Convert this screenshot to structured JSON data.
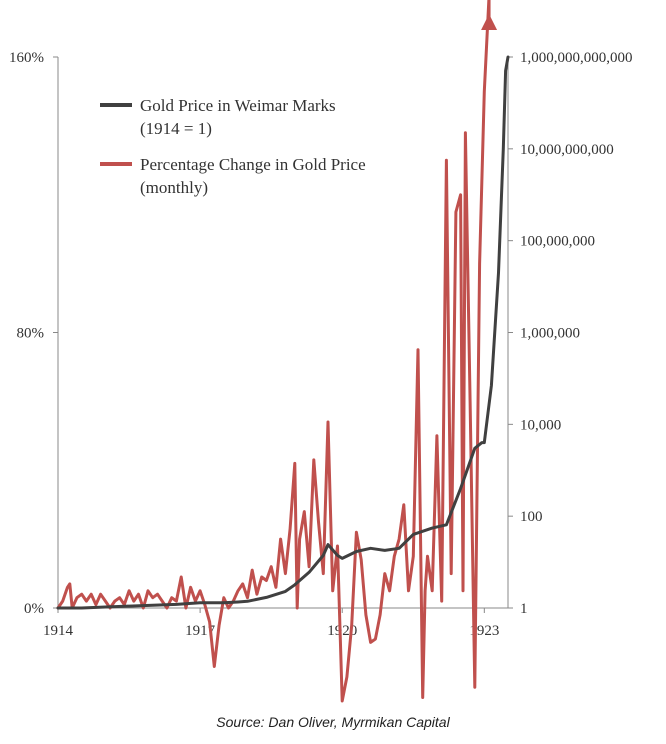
{
  "chart_data": {
    "type": "line",
    "title": "",
    "xlabel": "",
    "x_ticks": [
      "1914",
      "1917",
      "1920",
      "1923"
    ],
    "xlim": [
      1914,
      1923.5
    ],
    "left_axis": {
      "ticks": [
        "0%",
        "80%",
        "160%"
      ],
      "ylim": [
        0,
        160
      ],
      "unit": "%"
    },
    "right_axis": {
      "scale": "log",
      "ticks": [
        "1",
        "100",
        "10,000",
        "1,000,000",
        "100,000,000",
        "10,000,000,000",
        "1,000,000,000,000"
      ],
      "ylim": [
        1,
        1000000000000
      ]
    },
    "series": [
      {
        "name": "Gold Price in Weimar Marks",
        "name_line2": "(1914 = 1)",
        "axis": "right",
        "color": "#404040",
        "points": [
          [
            1914.0,
            1
          ],
          [
            1914.5,
            1
          ],
          [
            1915.0,
            1.05
          ],
          [
            1915.5,
            1.1
          ],
          [
            1916.0,
            1.15
          ],
          [
            1916.5,
            1.2
          ],
          [
            1917.0,
            1.3
          ],
          [
            1917.5,
            1.3
          ],
          [
            1917.8,
            1.35
          ],
          [
            1918.0,
            1.4
          ],
          [
            1918.4,
            1.7
          ],
          [
            1918.8,
            2.3
          ],
          [
            1919.0,
            3.2
          ],
          [
            1919.3,
            6
          ],
          [
            1919.6,
            14
          ],
          [
            1919.7,
            24
          ],
          [
            1919.9,
            14
          ],
          [
            1920.0,
            12
          ],
          [
            1920.3,
            17
          ],
          [
            1920.6,
            20
          ],
          [
            1920.9,
            18
          ],
          [
            1921.2,
            20
          ],
          [
            1921.5,
            40
          ],
          [
            1921.9,
            55
          ],
          [
            1922.2,
            65
          ],
          [
            1922.5,
            400
          ],
          [
            1922.8,
            3000
          ],
          [
            1922.95,
            4000
          ],
          [
            1923.0,
            4000
          ],
          [
            1923.15,
            70000
          ],
          [
            1923.3,
            20000000
          ],
          [
            1923.4,
            10000000000
          ],
          [
            1923.45,
            500000000000
          ],
          [
            1923.5,
            1000000000000
          ]
        ]
      },
      {
        "name": "Percentage Change in Gold Price",
        "name_line2": "(monthly)",
        "axis": "left",
        "color": "#c0504d",
        "points": [
          [
            1914.0,
            0
          ],
          [
            1914.1,
            2
          ],
          [
            1914.2,
            6
          ],
          [
            1914.25,
            7
          ],
          [
            1914.3,
            0
          ],
          [
            1914.4,
            3
          ],
          [
            1914.5,
            4
          ],
          [
            1914.6,
            2
          ],
          [
            1914.7,
            4
          ],
          [
            1914.8,
            1
          ],
          [
            1914.9,
            4
          ],
          [
            1915.0,
            2
          ],
          [
            1915.1,
            0
          ],
          [
            1915.2,
            2
          ],
          [
            1915.3,
            3
          ],
          [
            1915.4,
            1
          ],
          [
            1915.5,
            5
          ],
          [
            1915.6,
            2
          ],
          [
            1915.7,
            4
          ],
          [
            1915.8,
            0
          ],
          [
            1915.9,
            5
          ],
          [
            1916.0,
            3
          ],
          [
            1916.1,
            4
          ],
          [
            1916.2,
            2
          ],
          [
            1916.3,
            0
          ],
          [
            1916.4,
            3
          ],
          [
            1916.5,
            2
          ],
          [
            1916.6,
            9
          ],
          [
            1916.7,
            0
          ],
          [
            1916.8,
            6
          ],
          [
            1916.9,
            2
          ],
          [
            1917.0,
            5
          ],
          [
            1917.1,
            1
          ],
          [
            1917.2,
            -4
          ],
          [
            1917.3,
            -17
          ],
          [
            1917.4,
            -5
          ],
          [
            1917.5,
            3
          ],
          [
            1917.6,
            0
          ],
          [
            1917.7,
            2
          ],
          [
            1917.8,
            5
          ],
          [
            1917.9,
            7
          ],
          [
            1918.0,
            3
          ],
          [
            1918.1,
            11
          ],
          [
            1918.2,
            4
          ],
          [
            1918.3,
            9
          ],
          [
            1918.4,
            8
          ],
          [
            1918.5,
            12
          ],
          [
            1918.6,
            6
          ],
          [
            1918.7,
            20
          ],
          [
            1918.8,
            10
          ],
          [
            1918.9,
            23
          ],
          [
            1919.0,
            42
          ],
          [
            1919.05,
            0
          ],
          [
            1919.1,
            20
          ],
          [
            1919.2,
            28
          ],
          [
            1919.3,
            12
          ],
          [
            1919.4,
            43
          ],
          [
            1919.5,
            25
          ],
          [
            1919.6,
            10
          ],
          [
            1919.7,
            54
          ],
          [
            1919.8,
            5
          ],
          [
            1919.9,
            18
          ],
          [
            1920.0,
            -27
          ],
          [
            1920.1,
            -20
          ],
          [
            1920.2,
            -5
          ],
          [
            1920.3,
            22
          ],
          [
            1920.4,
            14
          ],
          [
            1920.5,
            -2
          ],
          [
            1920.6,
            -10
          ],
          [
            1920.7,
            -9
          ],
          [
            1920.8,
            -2
          ],
          [
            1920.9,
            10
          ],
          [
            1921.0,
            5
          ],
          [
            1921.1,
            15
          ],
          [
            1921.2,
            20
          ],
          [
            1921.3,
            30
          ],
          [
            1921.4,
            5
          ],
          [
            1921.5,
            15
          ],
          [
            1921.6,
            75
          ],
          [
            1921.7,
            -26
          ],
          [
            1921.75,
            5
          ],
          [
            1921.8,
            15
          ],
          [
            1921.9,
            5
          ],
          [
            1922.0,
            50
          ],
          [
            1922.1,
            2
          ],
          [
            1922.2,
            130
          ],
          [
            1922.3,
            10
          ],
          [
            1922.4,
            115
          ],
          [
            1922.5,
            120
          ],
          [
            1922.55,
            5
          ],
          [
            1922.6,
            138
          ],
          [
            1922.7,
            60
          ],
          [
            1922.8,
            -23
          ],
          [
            1922.9,
            100
          ],
          [
            1923.0,
            150
          ],
          [
            1923.1,
            178
          ]
        ]
      }
    ],
    "grid": false,
    "legend": "top-left"
  },
  "source": "Source: Dan Oliver, Myrmikan Capital"
}
